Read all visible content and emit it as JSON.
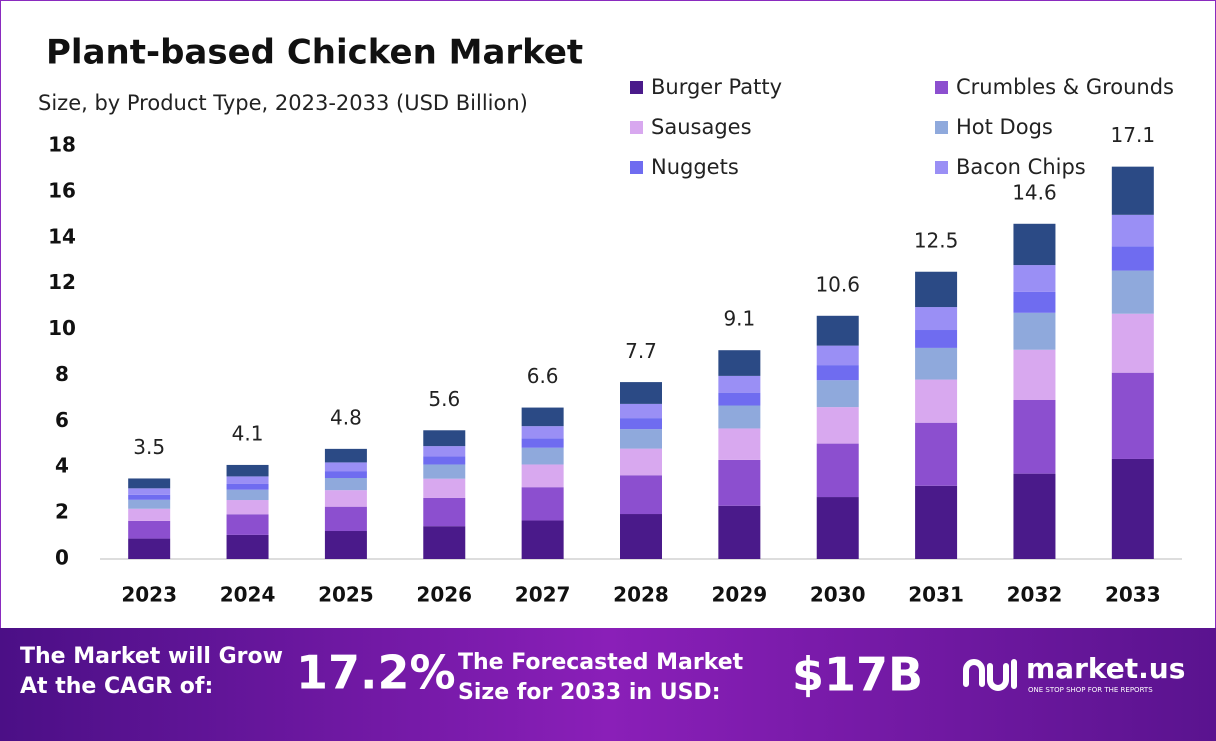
{
  "chart_data": {
    "type": "stacked_bar",
    "title": "Plant-based Chicken Market",
    "subtitle": "Size, by Product Type, 2023-2033 (USD Billion)",
    "categories": [
      "2023",
      "2024",
      "2025",
      "2026",
      "2027",
      "2028",
      "2029",
      "2030",
      "2031",
      "2032",
      "2033"
    ],
    "series": [
      {
        "name": "Burger Patty",
        "color": "#4a1a8a",
        "values": [
          0.89,
          1.05,
          1.22,
          1.43,
          1.68,
          1.96,
          2.32,
          2.7,
          3.19,
          3.72,
          4.36
        ]
      },
      {
        "name": "Crumbles & Grounds",
        "color": "#8c4fcf",
        "values": [
          0.77,
          0.9,
          1.06,
          1.23,
          1.45,
          1.69,
          2.0,
          2.33,
          2.75,
          3.21,
          3.76
        ]
      },
      {
        "name": "Sausages",
        "color": "#d8a8ef",
        "values": [
          0.53,
          0.62,
          0.72,
          0.84,
          0.99,
          1.16,
          1.37,
          1.59,
          1.88,
          2.19,
          2.57
        ]
      },
      {
        "name": "Hot Dogs",
        "color": "#8fa9dc",
        "values": [
          0.39,
          0.45,
          0.53,
          0.62,
          0.73,
          0.85,
          1.0,
          1.17,
          1.38,
          1.61,
          1.88
        ]
      },
      {
        "name": "Nuggets",
        "color": "#6f6cf0",
        "values": [
          0.22,
          0.25,
          0.3,
          0.35,
          0.41,
          0.48,
          0.56,
          0.66,
          0.78,
          0.91,
          1.06
        ]
      },
      {
        "name": "Bacon Chips",
        "color": "#9a8ff5",
        "values": [
          0.28,
          0.33,
          0.38,
          0.45,
          0.53,
          0.62,
          0.73,
          0.85,
          1.0,
          1.17,
          1.37
        ]
      },
      {
        "name": null,
        "color": "#2b4a85",
        "values": [
          0.43,
          0.5,
          0.59,
          0.69,
          0.81,
          0.95,
          1.12,
          1.3,
          1.54,
          1.8,
          2.1
        ]
      }
    ],
    "totals": [
      3.5,
      4.1,
      4.8,
      5.6,
      6.6,
      7.7,
      9.1,
      10.6,
      12.5,
      14.6,
      17.1
    ],
    "ylim": [
      0,
      18
    ],
    "yticks": [
      0,
      2,
      4,
      6,
      8,
      10,
      12,
      14,
      16,
      18
    ],
    "grid": false
  },
  "footer": {
    "cagr_label": [
      "The Market will Grow",
      "At the CAGR of:"
    ],
    "cagr": "17.2%",
    "forecast_label": [
      "The Forecasted Market",
      "Size for 2033 in USD:"
    ],
    "forecast": "$17B",
    "brand": "market.us",
    "tagline": "ONE STOP SHOP FOR THE REPORTS"
  }
}
